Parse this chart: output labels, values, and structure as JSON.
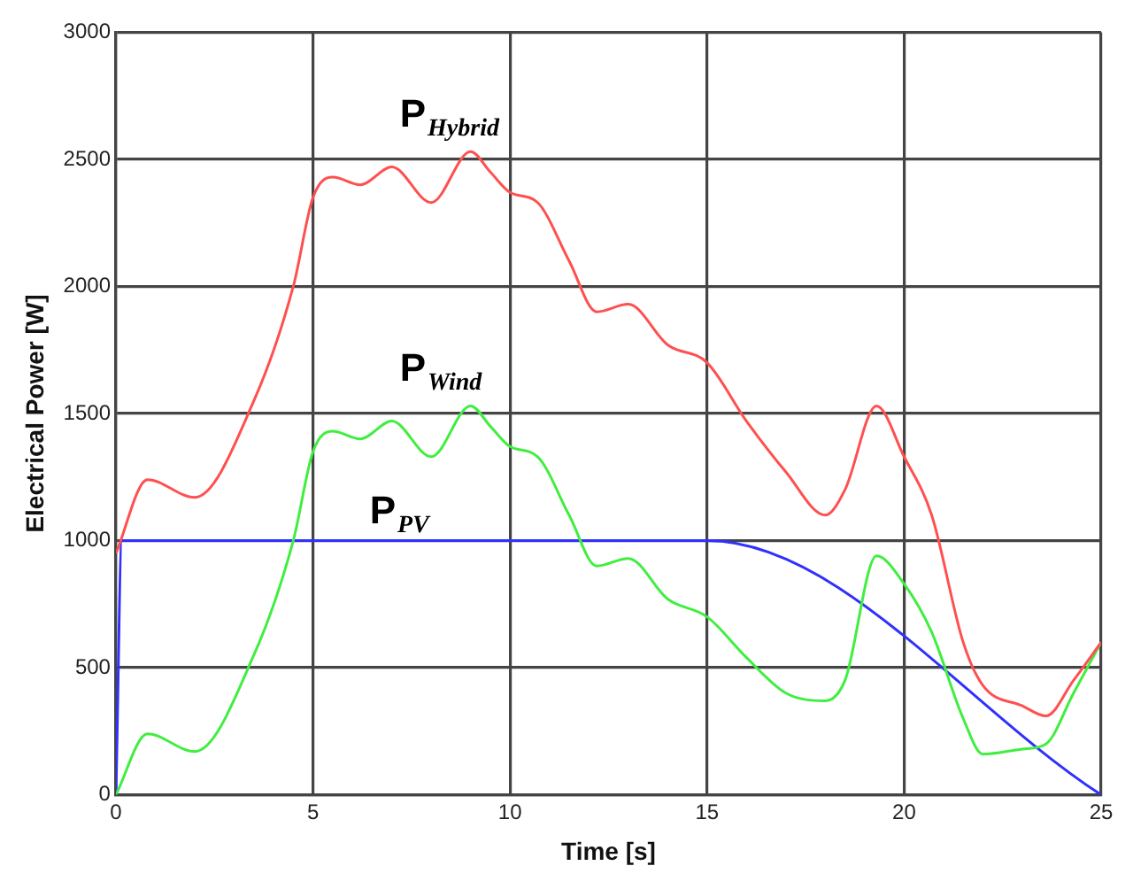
{
  "chart_data": {
    "type": "line",
    "xlabel": "Time [s]",
    "ylabel": "Electrical Power [W]",
    "xlim": [
      0,
      25
    ],
    "xticks": [
      0,
      5,
      10,
      15,
      20,
      25
    ],
    "ylim": [
      0,
      3000
    ],
    "yticks": [
      0,
      500,
      1000,
      1500,
      2000,
      2500,
      3000
    ],
    "grid": true,
    "legend": false,
    "marker": "none",
    "line_style": "solid",
    "series": [
      {
        "name": "P$_{Hybrid}$",
        "color": "#ff5050",
        "x": [
          0,
          0.8,
          2,
          3.5,
          4.5,
          5,
          5.5,
          6.2,
          7,
          8,
          9,
          9.5,
          10,
          10.7,
          11.5,
          12.2,
          13,
          14,
          15,
          16,
          17,
          18,
          18.5,
          19.3,
          20,
          20.7,
          21.5,
          22,
          23,
          23.6,
          24.3,
          25
        ],
        "values": [
          950,
          1240,
          1170,
          1550,
          2000,
          2350,
          2430,
          2400,
          2470,
          2330,
          2530,
          2450,
          2370,
          2330,
          2100,
          1900,
          1930,
          1770,
          1700,
          1470,
          1270,
          1100,
          1200,
          1530,
          1330,
          1100,
          600,
          430,
          350,
          310,
          450,
          600
        ]
      },
      {
        "name": "P$_{Wind}$",
        "color": "#40ee40",
        "x": [
          0,
          0.8,
          2,
          3.5,
          4.5,
          5,
          5.5,
          6.2,
          7,
          8,
          9,
          9.5,
          10,
          10.7,
          11.5,
          12.2,
          13,
          14,
          15,
          16,
          17,
          18,
          18.5,
          19.3,
          20,
          20.7,
          21.5,
          22,
          23,
          23.6,
          24.3,
          25
        ],
        "values": [
          0,
          240,
          170,
          550,
          1000,
          1350,
          1430,
          1400,
          1470,
          1330,
          1530,
          1450,
          1370,
          1330,
          1100,
          900,
          930,
          770,
          700,
          540,
          400,
          370,
          450,
          940,
          830,
          640,
          300,
          160,
          180,
          200,
          400,
          600
        ]
      },
      {
        "name": "P$_{PV}$",
        "color": "#3030ff",
        "x": [
          0,
          0.15,
          15,
          25
        ],
        "values": [
          0,
          1000,
          1000,
          0
        ]
      }
    ]
  }
}
